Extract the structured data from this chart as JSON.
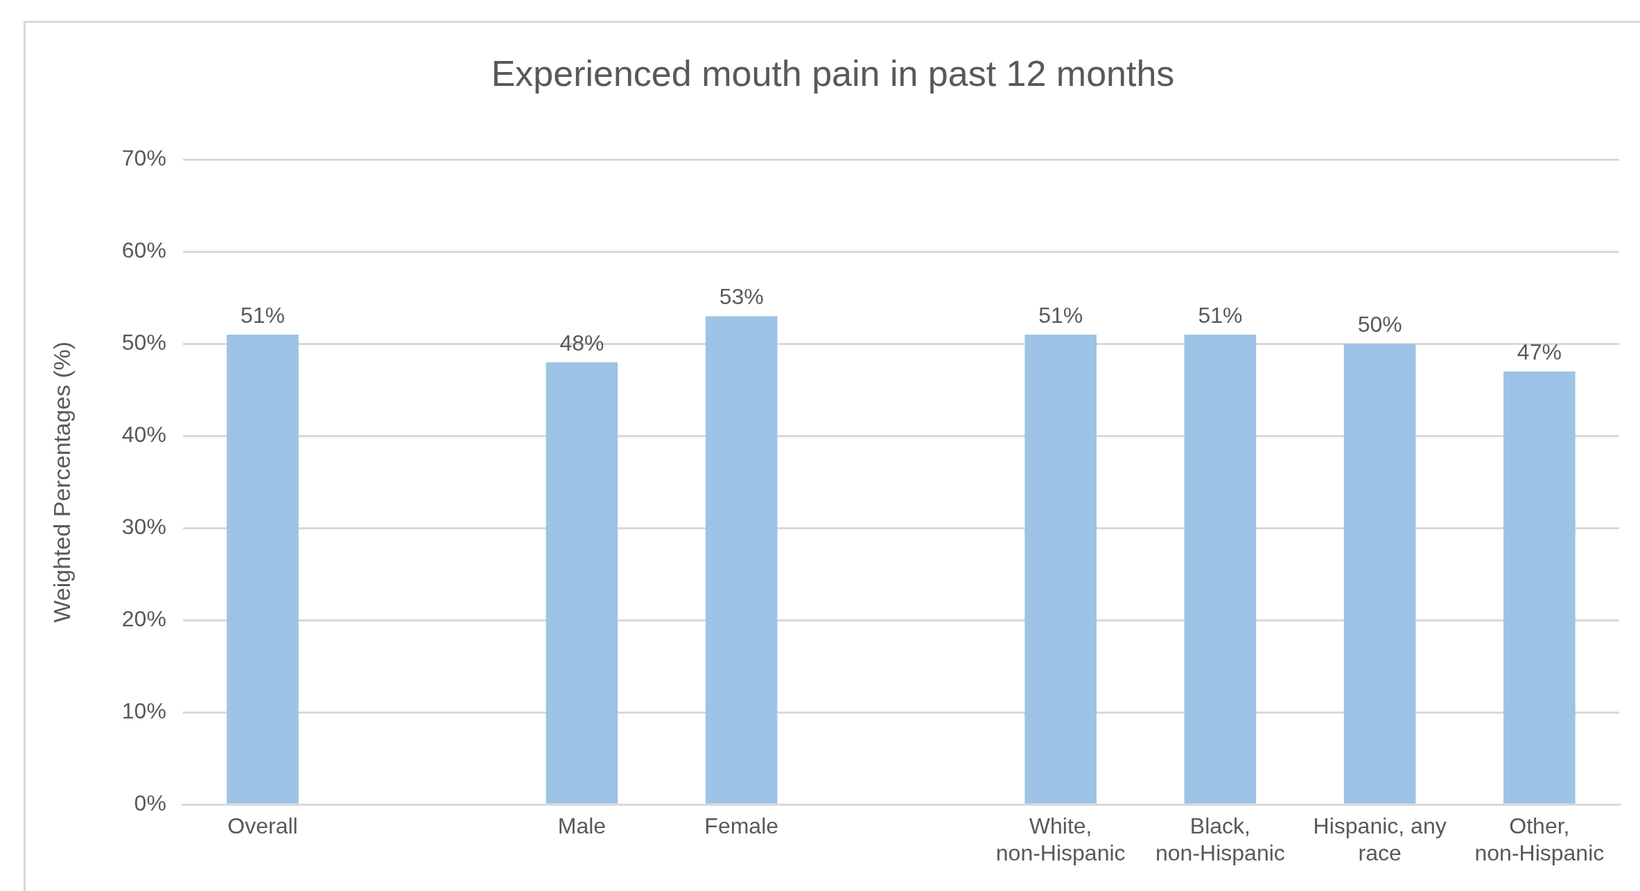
{
  "chart_data": {
    "type": "bar",
    "title": "Experienced mouth pain in past 12 months",
    "ylabel": "Weighted Percentages (%)",
    "categories": [
      "Overall",
      null,
      "Male",
      "Female",
      null,
      "White, non-Hispanic",
      "Black, non-Hispanic",
      "Hispanic, any race",
      "Other, non-Hispanic"
    ],
    "values": [
      51,
      null,
      48,
      53,
      null,
      51,
      51,
      50,
      47
    ],
    "value_labels": [
      "51%",
      null,
      "48%",
      "53%",
      null,
      "51%",
      "51%",
      "50%",
      "47%"
    ],
    "color": "#9dc3e6",
    "ylim": [
      0,
      70
    ],
    "yticks": [
      {
        "value": 0,
        "label": "0%"
      },
      {
        "value": 10,
        "label": "10%"
      },
      {
        "value": 20,
        "label": "20%"
      },
      {
        "value": 30,
        "label": "30%"
      },
      {
        "value": 40,
        "label": "40%"
      },
      {
        "value": 50,
        "label": "50%"
      },
      {
        "value": 60,
        "label": "60%"
      },
      {
        "value": 70,
        "label": "70%"
      }
    ],
    "grid": "y",
    "legend": false
  }
}
